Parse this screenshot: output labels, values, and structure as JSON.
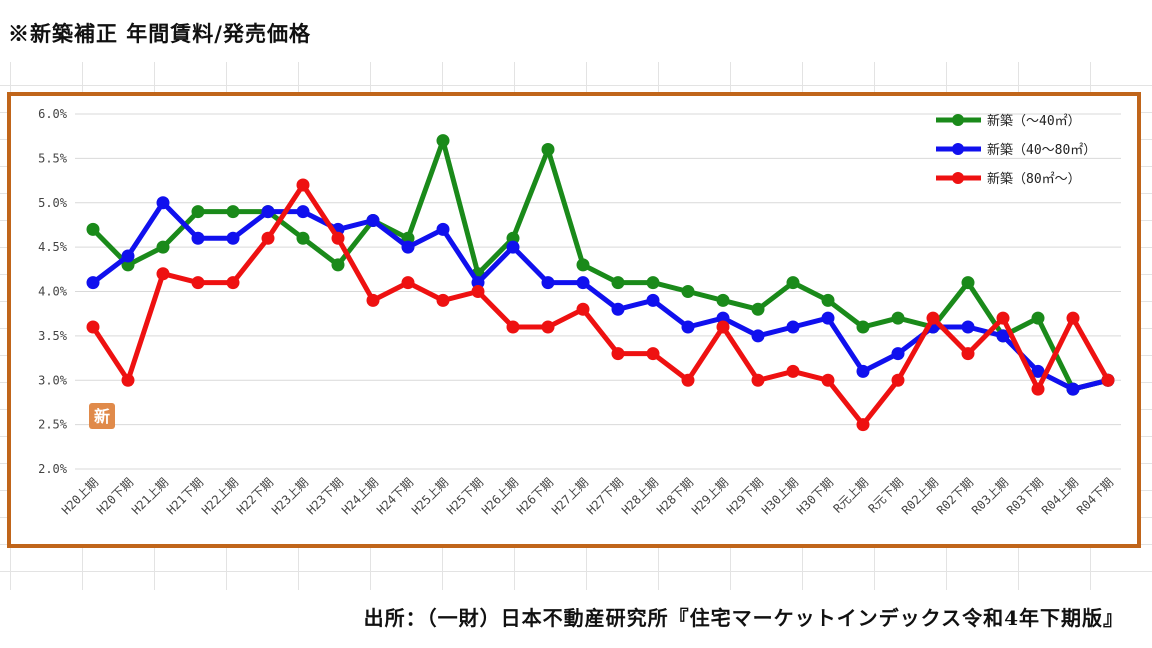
{
  "page": {
    "title": "※新築補正 年間賃料/発売価格",
    "source": "出所：（一財）日本不動産研究所『住宅マーケットインデックス令和4年下期版』"
  },
  "stamp": {
    "label": "新",
    "color": "#e08a4a"
  },
  "colors": {
    "frame": "#c0651a"
  },
  "chart_data": {
    "type": "line",
    "categories": [
      "H20上期",
      "H20下期",
      "H21上期",
      "H21下期",
      "H22上期",
      "H22下期",
      "H23上期",
      "H23下期",
      "H24上期",
      "H24下期",
      "H25上期",
      "H25下期",
      "H26上期",
      "H26下期",
      "H27上期",
      "H27下期",
      "H28上期",
      "H28下期",
      "H29上期",
      "H29下期",
      "H30上期",
      "H30下期",
      "R元上期",
      "R元下期",
      "R02上期",
      "R02下期",
      "R03上期",
      "R03下期",
      "R04上期",
      "R04下期"
    ],
    "ylim": [
      2.0,
      6.0
    ],
    "yticks": [
      "2.0%",
      "2.5%",
      "3.0%",
      "3.5%",
      "4.0%",
      "4.5%",
      "5.0%",
      "5.5%",
      "6.0%"
    ],
    "grid": "horizontal",
    "legend_position": "top-right",
    "series": [
      {
        "name": "新築（～40㎡）",
        "color": "#1a8a1a",
        "values": [
          4.7,
          4.3,
          4.5,
          4.9,
          4.9,
          4.9,
          4.6,
          4.3,
          4.8,
          4.6,
          5.7,
          4.2,
          4.6,
          5.6,
          4.3,
          4.1,
          4.1,
          4.0,
          3.9,
          3.8,
          4.1,
          3.9,
          3.6,
          3.7,
          3.6,
          4.1,
          3.5,
          3.7,
          2.9,
          3.0
        ]
      },
      {
        "name": "新築（40～80㎡）",
        "color": "#1010ee",
        "values": [
          4.1,
          4.4,
          5.0,
          4.6,
          4.6,
          4.9,
          4.9,
          4.7,
          4.8,
          4.5,
          4.7,
          4.1,
          4.5,
          4.1,
          4.1,
          3.8,
          3.9,
          3.6,
          3.7,
          3.5,
          3.6,
          3.7,
          3.1,
          3.3,
          3.6,
          3.6,
          3.5,
          3.1,
          2.9,
          3.0
        ]
      },
      {
        "name": "新築（80㎡～）",
        "color": "#ee1111",
        "values": [
          3.6,
          3.0,
          4.2,
          4.1,
          4.1,
          4.6,
          5.2,
          4.6,
          3.9,
          4.1,
          3.9,
          4.0,
          3.6,
          3.6,
          3.8,
          3.3,
          3.3,
          3.0,
          3.6,
          3.0,
          3.1,
          3.0,
          2.5,
          3.0,
          3.7,
          3.3,
          3.7,
          2.9,
          3.7,
          3.0
        ]
      }
    ]
  }
}
